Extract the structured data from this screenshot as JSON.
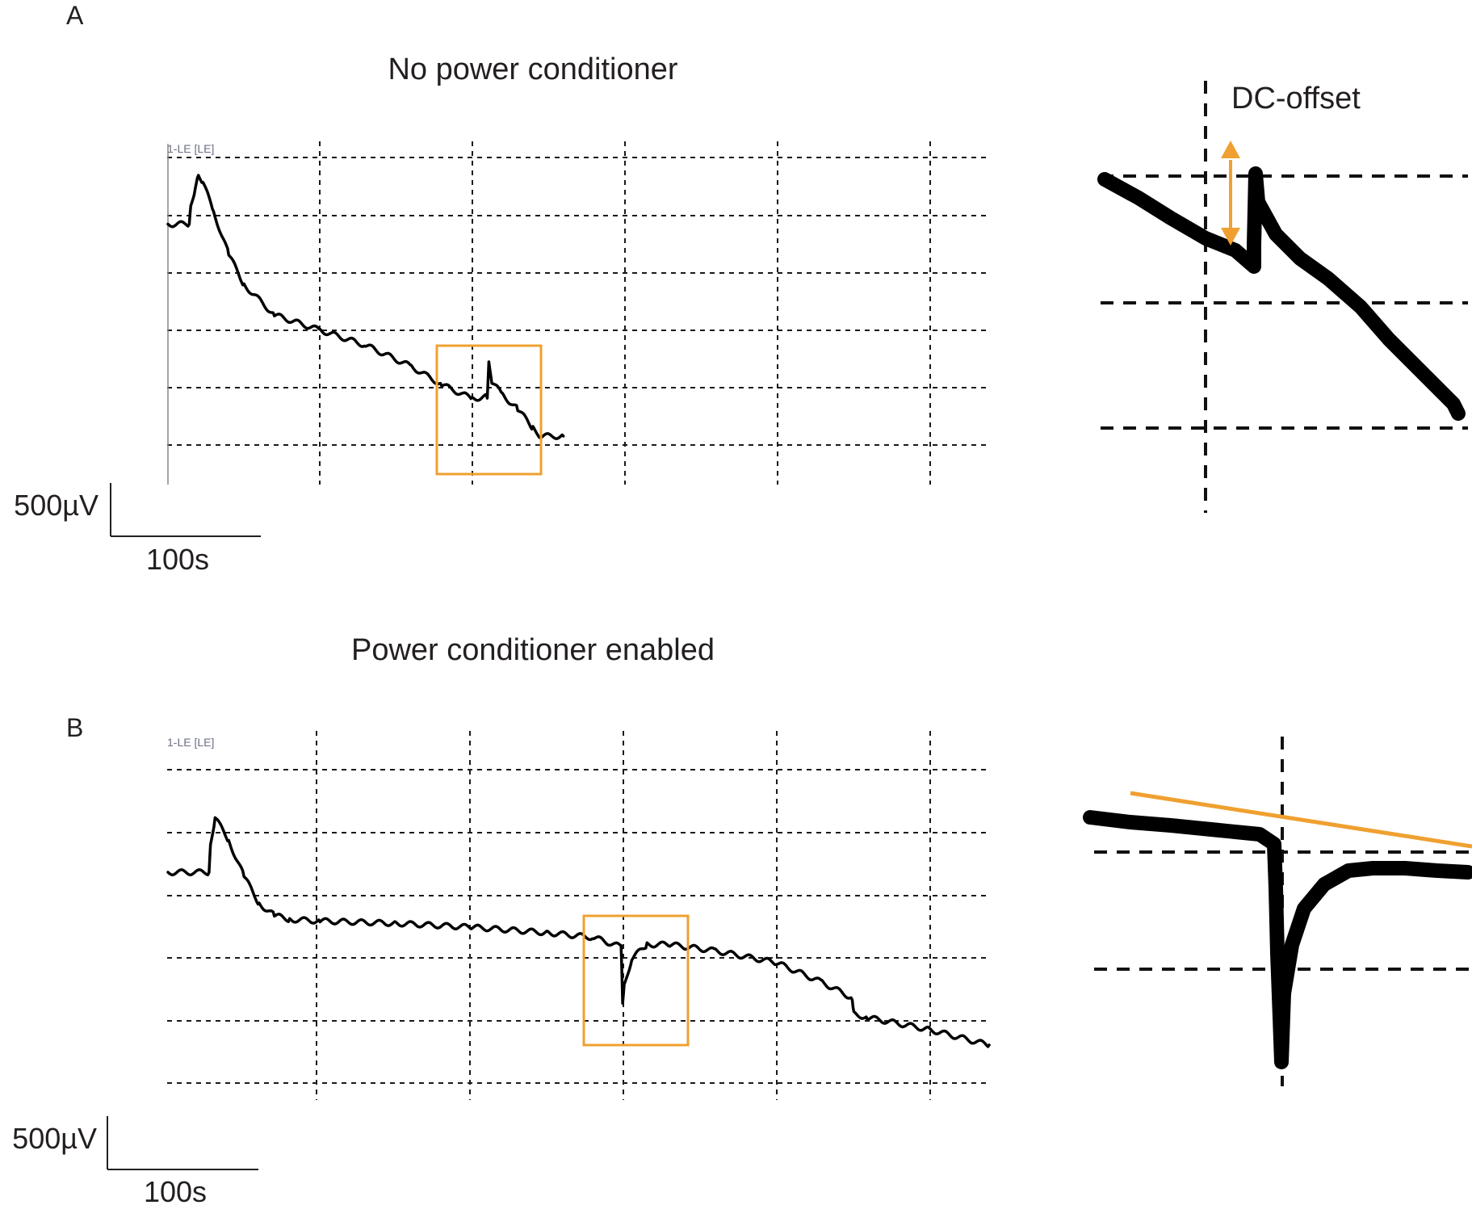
{
  "panels": [
    {
      "letter": "A",
      "title": "No power conditioner",
      "channel_label": "1-LE [LE]",
      "scale_voltage": "500µV",
      "scale_time": "100s",
      "inset_annotation": "DC-offset"
    },
    {
      "letter": "B",
      "title": "Power conditioner enabled",
      "channel_label": "1-LE [LE]",
      "scale_voltage": "500µV",
      "scale_time": "100s"
    }
  ],
  "colors": {
    "trace": "#000000",
    "highlight": "#f0a030",
    "grid": "#1a1a1a"
  },
  "chart_data": [
    {
      "type": "line",
      "title": "No power conditioner",
      "series": [
        {
          "name": "1-LE [LE]",
          "x": [
            0,
            14,
            15,
            18,
            20,
            23,
            30,
            40,
            50,
            70,
            100,
            130,
            160,
            180,
            200,
            210,
            211,
            213,
            220,
            230,
            240,
            245,
            260
          ],
          "y": [
            4300,
            4300,
            4600,
            4900,
            5100,
            5000,
            4500,
            3800,
            3300,
            2800,
            2550,
            2300,
            1950,
            1650,
            1420,
            1450,
            2000,
            1700,
            1480,
            1250,
            930,
            800,
            800
          ]
        }
      ],
      "xlim": [
        0,
        540
      ],
      "ylim": [
        0,
        5600
      ],
      "x_gridlines": [
        100,
        200,
        300,
        400,
        500
      ],
      "y_gridlines": [
        700,
        1700,
        2700,
        3700,
        4700,
        5700
      ]
    },
    {
      "type": "line",
      "title": "Power conditioner enabled",
      "series": [
        {
          "name": "1-LE [LE]",
          "x": [
            0,
            27,
            28,
            31,
            40,
            50,
            60,
            70,
            80,
            100,
            150,
            200,
            250,
            280,
            298,
            299,
            300,
            305,
            315,
            330,
            360,
            400,
            430,
            450,
            451,
            460,
            500,
            540
          ],
          "y": [
            4100,
            4100,
            4450,
            4800,
            4500,
            4050,
            3700,
            3550,
            3500,
            3480,
            3450,
            3400,
            3330,
            3270,
            3150,
            2450,
            2650,
            3000,
            3180,
            3180,
            3100,
            2950,
            2700,
            2500,
            2300,
            2250,
            2100,
            1900
          ]
        }
      ],
      "xlim": [
        0,
        540
      ],
      "ylim": [
        1200,
        5900
      ],
      "x_gridlines": [
        100,
        200,
        300,
        400,
        500
      ],
      "y_gridlines": [
        1000,
        2000,
        3000,
        4000,
        5000
      ]
    }
  ]
}
